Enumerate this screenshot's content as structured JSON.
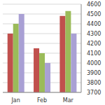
{
  "chart_data": {
    "type": "bar",
    "categories": [
      "Jan",
      "Feb",
      "Mar"
    ],
    "series": [
      {
        "color": "#c0504d",
        "values": [
          4300,
          4150,
          4480
        ]
      },
      {
        "color": "#9bbb59",
        "values": [
          4400,
          4100,
          4530
        ]
      },
      {
        "color": "#a9a0d4",
        "values": [
          4500,
          4000,
          4300
        ]
      }
    ],
    "ylim": [
      3700,
      4600
    ],
    "yticks": [
      3700,
      3800,
      3900,
      4000,
      4100,
      4200,
      4300,
      4400,
      4500,
      4600
    ],
    "grid": true
  }
}
